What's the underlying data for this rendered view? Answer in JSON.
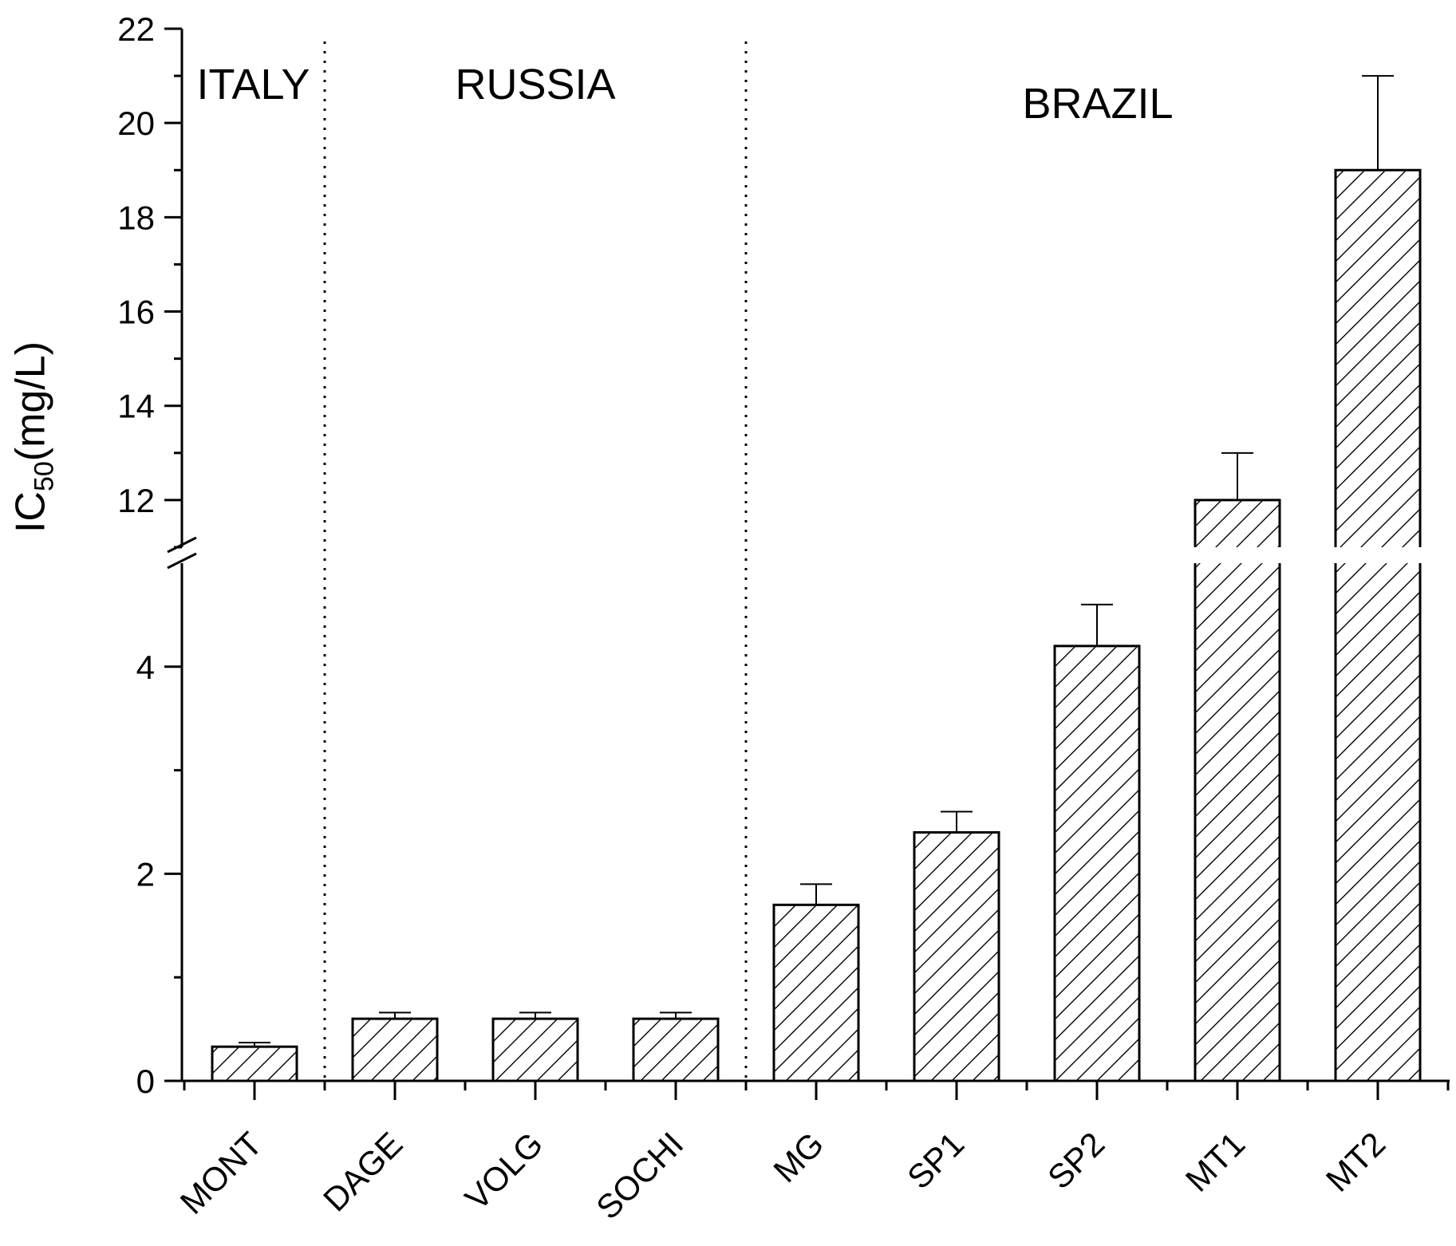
{
  "chart_data": {
    "type": "bar",
    "title": "",
    "ylabel_main": "IC",
    "ylabel_sub": "50",
    "ylabel_unit": "(mg/L)",
    "xlabel": "",
    "categories": [
      "MONT",
      "DAGE",
      "VOLG",
      "SOCHI",
      "MG",
      "SP1",
      "SP2",
      "MT1",
      "MT2"
    ],
    "values": [
      0.33,
      0.6,
      0.6,
      0.6,
      1.7,
      2.4,
      4.2,
      12.0,
      19.0
    ],
    "error_upper": [
      0.37,
      0.66,
      0.66,
      0.66,
      1.9,
      2.6,
      4.6,
      13.0,
      21.0
    ],
    "groups": [
      {
        "label": "ITALY",
        "members": [
          "MONT"
        ]
      },
      {
        "label": "RUSSIA",
        "members": [
          "DAGE",
          "VOLG",
          "SOCHI"
        ]
      },
      {
        "label": "BRAZIL",
        "members": [
          "MG",
          "SP1",
          "SP2",
          "MT1",
          "MT2"
        ]
      }
    ],
    "y_axis_break": {
      "lower_range": [
        0,
        5
      ],
      "upper_range": [
        11,
        22
      ]
    },
    "lower_ticks": [
      "0",
      "2",
      "4"
    ],
    "upper_ticks": [
      "12",
      "14",
      "16",
      "18",
      "20",
      "22"
    ],
    "bar_fill": "hatched",
    "colors": {
      "stroke": "#000000",
      "fill": "#ffffff"
    },
    "grid": false,
    "legend": "none"
  }
}
